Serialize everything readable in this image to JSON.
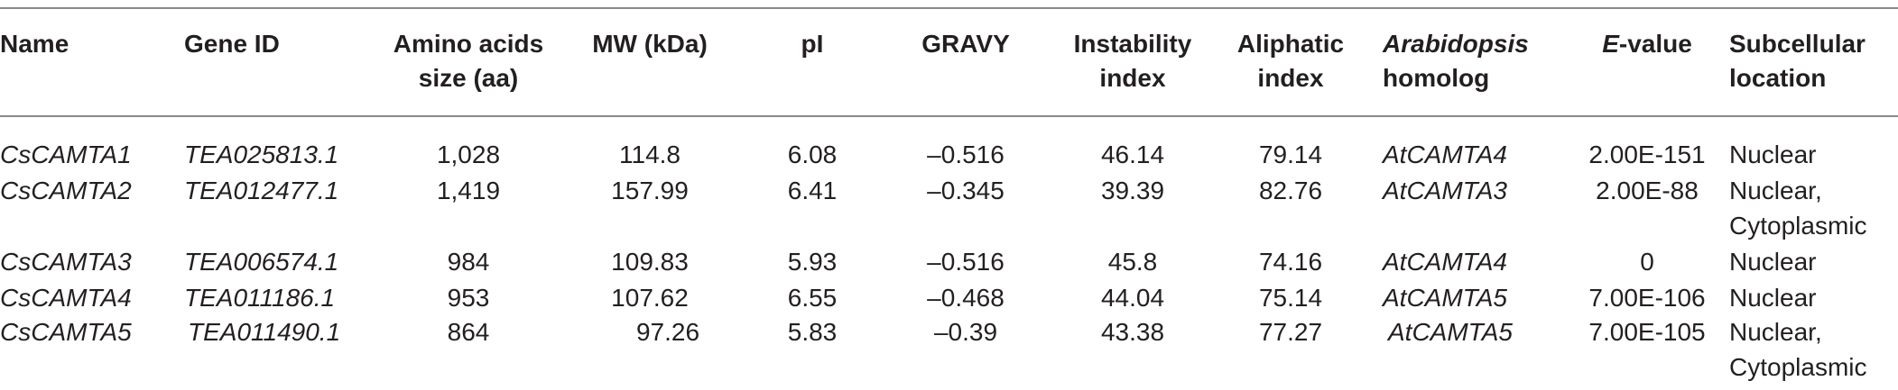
{
  "headers": {
    "name": "Name",
    "gene_id": "Gene ID",
    "amino_1": "Amino acids",
    "amino_2": "size (aa)",
    "mw": "MW (kDa)",
    "pi": "pI",
    "gravy": "GRAVY",
    "instability_1": "Instability",
    "instability_2": "index",
    "aliphatic_1": "Aliphatic",
    "aliphatic_2": "index",
    "homolog_1": "Arabidopsis",
    "homolog_2": "homolog",
    "evalue_prefix": "E",
    "evalue_suffix": "-value",
    "subcellular_1": "Subcellular",
    "subcellular_2": "location"
  },
  "rows": [
    {
      "name": "CsCAMTA1",
      "gene_id": "TEA025813.1",
      "aa": "1,028",
      "mw": "114.8",
      "pi": "6.08",
      "gravy": "–0.516",
      "instability": "46.14",
      "aliphatic": "79.14",
      "homolog": "AtCAMTA4",
      "evalue": "2.00E-151",
      "location_1": "Nuclear",
      "location_2": ""
    },
    {
      "name": "CsCAMTA2",
      "gene_id": "TEA012477.1",
      "aa": "1,419",
      "mw": "157.99",
      "pi": "6.41",
      "gravy": "–0.345",
      "instability": "39.39",
      "aliphatic": "82.76",
      "homolog": "AtCAMTA3",
      "evalue": "2.00E-88",
      "location_1": "Nuclear,",
      "location_2": "Cytoplasmic"
    },
    {
      "name": "CsCAMTA3",
      "gene_id": "TEA006574.1",
      "aa": "984",
      "mw": "109.83",
      "pi": "5.93",
      "gravy": "–0.516",
      "instability": "45.8",
      "aliphatic": "74.16",
      "homolog": "AtCAMTA4",
      "evalue": "0",
      "location_1": "Nuclear",
      "location_2": ""
    },
    {
      "name": "CsCAMTA4",
      "gene_id": "TEA011186.1",
      "aa": "953",
      "mw": "107.62",
      "pi": "6.55",
      "gravy": "–0.468",
      "instability": "44.04",
      "aliphatic": "75.14",
      "homolog": "AtCAMTA5",
      "evalue": "7.00E-106",
      "location_1": "Nuclear",
      "location_2": ""
    },
    {
      "name": "CsCAMTA5",
      "gene_id": "TEA011490.1",
      "aa": "864",
      "mw": "97.26",
      "pi": "5.83",
      "gravy": "–0.39",
      "instability": "43.38",
      "aliphatic": "77.27",
      "homolog": "AtCAMTA5",
      "evalue": "7.00E-105",
      "location_1": "Nuclear,",
      "location_2": "Cytoplasmic"
    }
  ]
}
